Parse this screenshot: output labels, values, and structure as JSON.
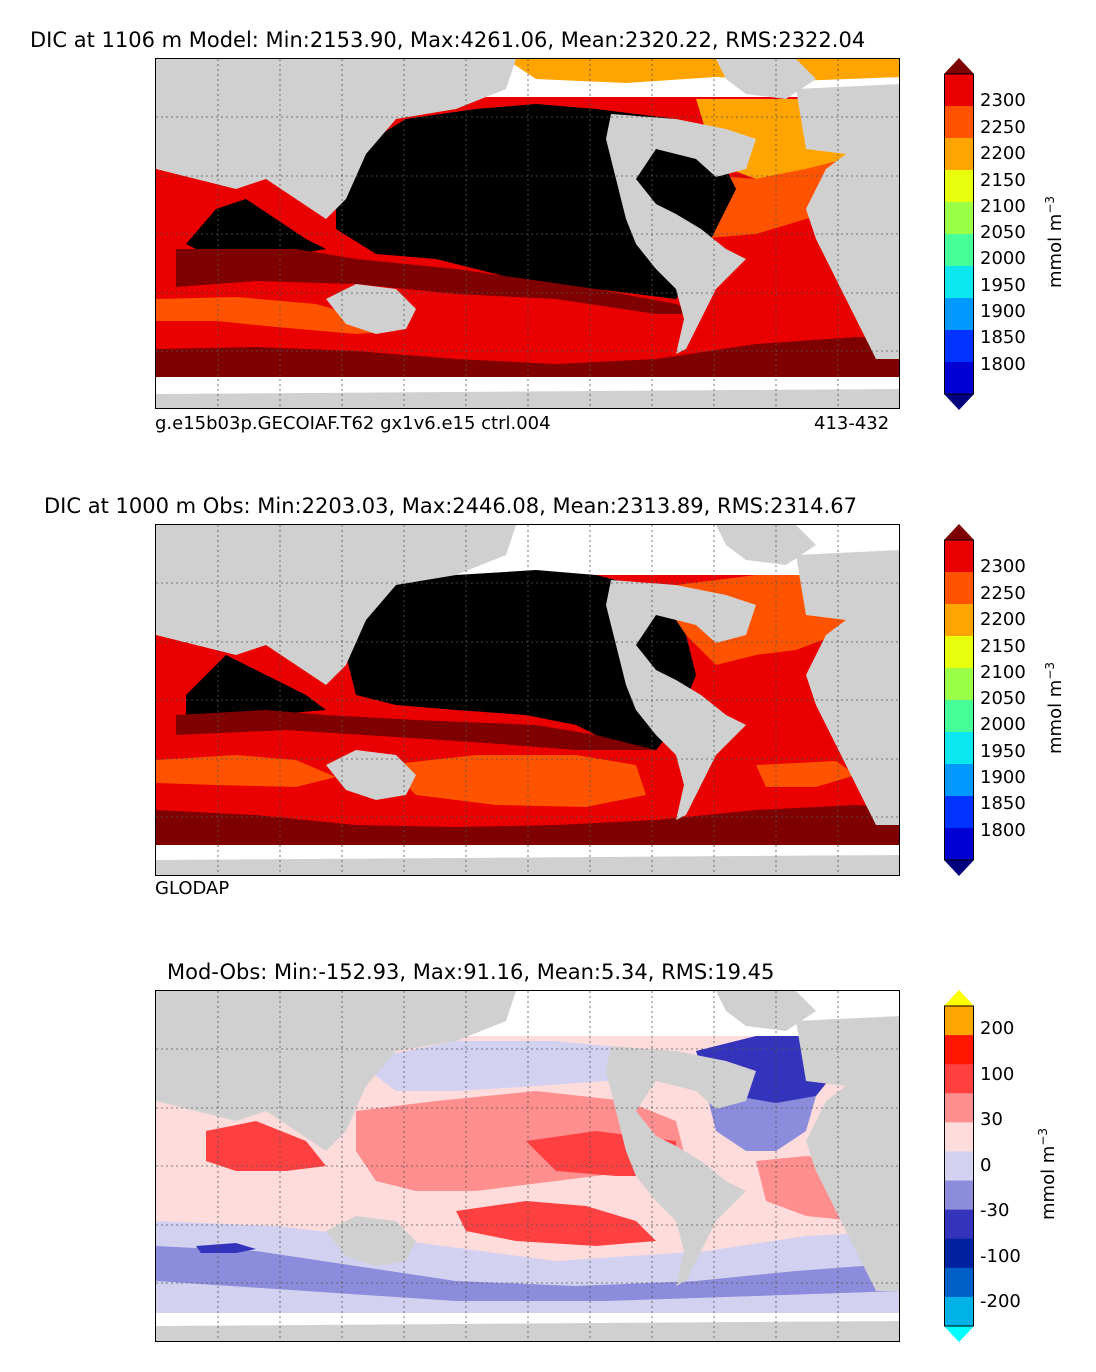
{
  "panels": [
    {
      "title": "DIC at 1106 m Model: Min:2153.90, Max:4261.06, Mean:2320.22, RMS:2322.04",
      "caption_left": "g.e15b03p.GECOIAF.T62 gx1v6.e15 ctrl.004",
      "caption_right": "413-432",
      "colorbar": {
        "units_main": "mmol m",
        "units_sup": "−3",
        "ticks": [
          "2300",
          "2250",
          "2200",
          "2150",
          "2100",
          "2050",
          "2000",
          "1950",
          "1900",
          "1850",
          "1800"
        ],
        "colors": [
          "#00007f",
          "#0000d5",
          "#0033ff",
          "#0099ff",
          "#0ce7ef",
          "#47ff98",
          "#99ff47",
          "#e7ff0c",
          "#ffa400",
          "#ff5300",
          "#ea0000",
          "#7f0000"
        ]
      }
    },
    {
      "title": "DIC at 1000 m Obs: Min:2203.03, Max:2446.08, Mean:2313.89, RMS:2314.67",
      "caption_left": "GLODAP",
      "colorbar": {
        "units_main": "mmol m",
        "units_sup": "−3",
        "ticks": [
          "2300",
          "2250",
          "2200",
          "2150",
          "2100",
          "2050",
          "2000",
          "1950",
          "1900",
          "1850",
          "1800"
        ],
        "colors": [
          "#00007f",
          "#0000d5",
          "#0033ff",
          "#0099ff",
          "#0ce7ef",
          "#47ff98",
          "#99ff47",
          "#e7ff0c",
          "#ffa400",
          "#ff5300",
          "#ea0000",
          "#7f0000"
        ]
      }
    },
    {
      "title": "Mod-Obs: Min:-152.93, Max:91.16, Mean:5.34, RMS:19.45",
      "colorbar": {
        "units_main": "mmol m",
        "units_sup": "−3",
        "ticks": [
          "200",
          "100",
          "30",
          "0",
          "-30",
          "-100",
          "-200"
        ],
        "colors": [
          "#00ffff",
          "#00b2e6",
          "#0060c8",
          "#0022a0",
          "#3333bb",
          "#8c8cdc",
          "#d2d2f0",
          "#ffdcdc",
          "#ff8f8f",
          "#ff4040",
          "#ff1500",
          "#ffa500",
          "#ffff00"
        ]
      }
    }
  ],
  "colors": {
    "land": "#d0d0d0",
    "missing": "#ffffff",
    "over_max": "#000000"
  }
}
